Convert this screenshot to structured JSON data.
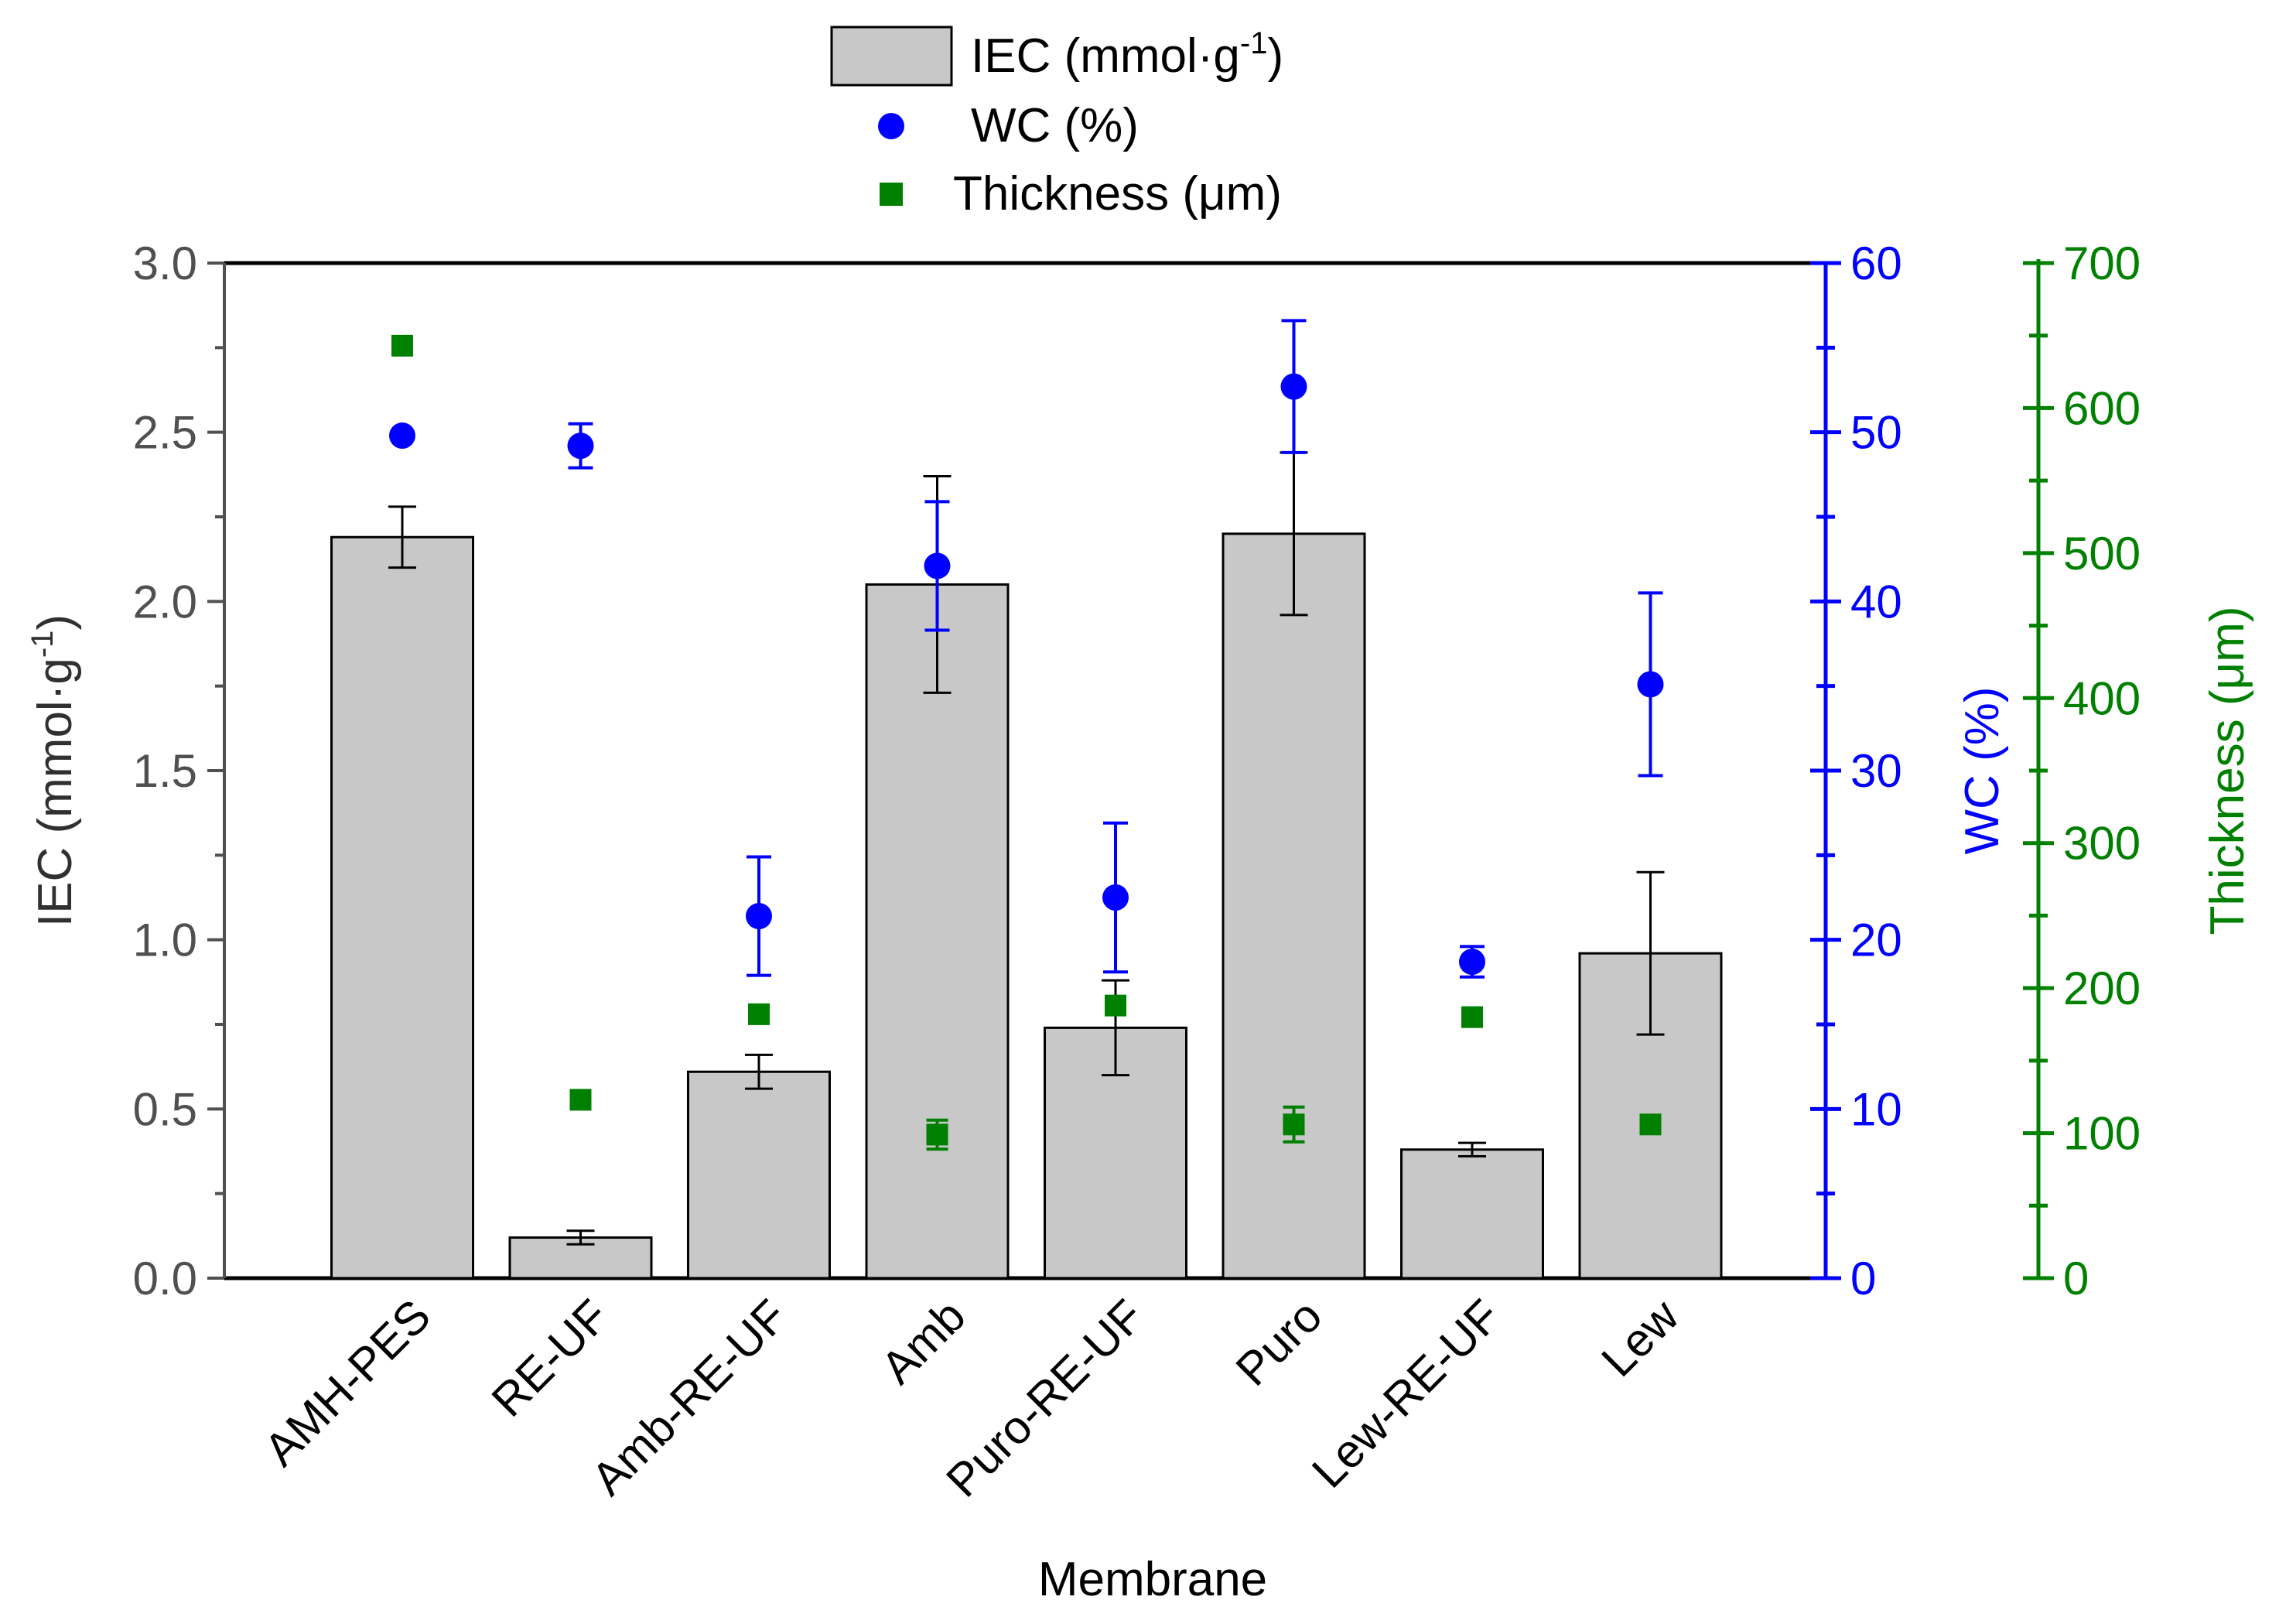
{
  "chart_data": {
    "type": "bar",
    "xlabel": "Membrane",
    "categories": [
      "AMH-PES",
      "RE-UF",
      "Amb-RE-UF",
      "Amb",
      "Puro-RE-UF",
      "Puro",
      "Lew-RE-UF",
      "Lew"
    ],
    "series": [
      {
        "name": "IEC (mmol·g-1)",
        "kind": "bar",
        "axis": "left",
        "values": [
          2.19,
          0.12,
          0.61,
          2.05,
          0.74,
          2.2,
          0.38,
          0.96
        ],
        "errors": [
          0.09,
          0.02,
          0.05,
          0.32,
          0.14,
          0.24,
          0.02,
          0.24
        ]
      },
      {
        "name": "WC (%)",
        "kind": "scatter-circle",
        "axis": "right1",
        "values": [
          49.8,
          49.2,
          21.4,
          42.1,
          22.5,
          52.7,
          18.7,
          35.1
        ],
        "errors": [
          0.0,
          1.3,
          3.5,
          3.8,
          4.4,
          3.9,
          0.9,
          5.4
        ]
      },
      {
        "name": "Thickness (μm)",
        "kind": "scatter-square",
        "axis": "right2",
        "values": [
          643,
          123,
          182,
          99,
          188,
          106,
          180,
          106
        ],
        "errors": [
          3,
          2,
          3,
          10,
          5,
          12,
          3,
          3
        ]
      }
    ],
    "axes": {
      "left": {
        "label_main": "IEC (mmol·g",
        "label_sup": "-1",
        "label_end": ")",
        "ylim": [
          0,
          3
        ],
        "ticks": [
          "0.0",
          "0.5",
          "1.0",
          "1.5",
          "2.0",
          "2.5",
          "3.0"
        ],
        "color": "#505050"
      },
      "right1": {
        "label": "WC (%)",
        "ylim": [
          0,
          60
        ],
        "ticks": [
          "0",
          "10",
          "20",
          "30",
          "40",
          "50",
          "60"
        ],
        "color": "#0000ff"
      },
      "right2": {
        "label": "Thickness (μm)",
        "ylim": [
          0,
          700
        ],
        "ticks": [
          "0",
          "100",
          "200",
          "300",
          "400",
          "500",
          "600",
          "700"
        ],
        "color": "#008000"
      }
    },
    "legend": {
      "placement": "top-center",
      "iec_main": "IEC (mmol·g",
      "iec_sup": "-1",
      "iec_end": ")",
      "wc": "WC (%)",
      "thickness": "Thickness (μm)"
    },
    "colors": {
      "bar_fill": "#c8c8c8",
      "bar_stroke": "#000000",
      "wc": "#0000ff",
      "thickness": "#008000",
      "error": "#000000"
    }
  }
}
